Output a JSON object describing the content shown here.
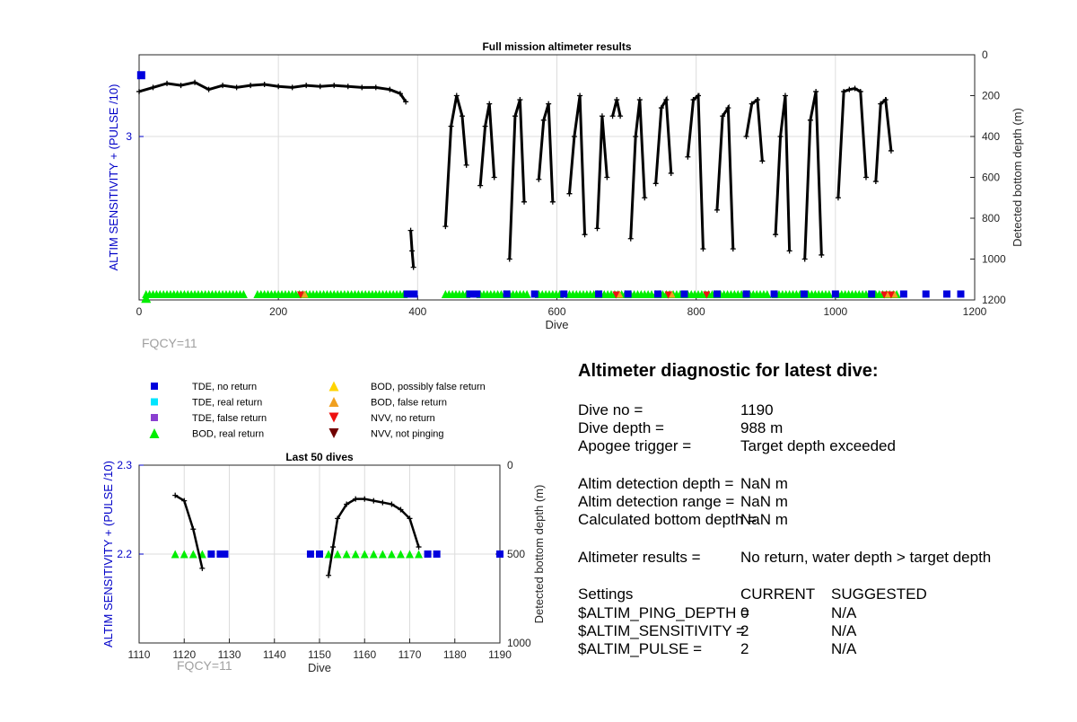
{
  "charts": {
    "colors": {
      "axis": "#262626",
      "grid": "#dcdcdc",
      "left_axis": "#0000c8",
      "black": "#000000",
      "blue": "#0000dd",
      "green": "#00ee00",
      "cyan": "#00e5ff",
      "purple": "#8a3fd0",
      "yellow": "#ffd400",
      "orange": "#f0a020",
      "red": "#ee1111",
      "darkred": "#700000",
      "fqcy": "#a0a0a0"
    }
  },
  "chart_data": [
    {
      "type": "scatter",
      "title": "Full mission altimeter results",
      "xlabel": "Dive",
      "ylabel_left": "ALTIM SENSITIVITY + (PULSE /10)",
      "ylabel_right": "Detected bottom depth (m)",
      "xlim": [
        0,
        1200
      ],
      "xticks": [
        0,
        200,
        400,
        600,
        800,
        1000,
        1200
      ],
      "ylim_right": [
        0,
        1200
      ],
      "yticks_right": [
        0,
        200,
        400,
        600,
        800,
        1000,
        1200
      ],
      "ytick_left": [
        3
      ],
      "ytick_left_value": 3.0,
      "ylim_left": [
        2.2,
        3.4
      ],
      "grid": true,
      "annotation": "FQCY=11",
      "left_marker": {
        "x": 3,
        "y": 3.3
      },
      "left_triangle": {
        "x": 10,
        "y": 2.21
      },
      "bottom_depth_segments": [
        {
          "x": [
            0,
            20,
            40,
            60,
            80,
            100,
            120,
            140,
            160,
            180,
            200,
            220,
            240,
            260,
            280,
            300,
            320,
            340,
            360,
            375,
            383
          ],
          "y": [
            180,
            160,
            140,
            150,
            135,
            170,
            150,
            160,
            150,
            145,
            155,
            160,
            150,
            155,
            150,
            155,
            160,
            160,
            170,
            190,
            230
          ]
        },
        {
          "x": [
            390,
            392,
            394
          ],
          "y": [
            860,
            960,
            1040
          ]
        },
        {
          "x": [
            440,
            448,
            456,
            464,
            470
          ],
          "y": [
            840,
            350,
            200,
            300,
            540
          ]
        },
        {
          "x": [
            490,
            497,
            503,
            510
          ],
          "y": [
            640,
            350,
            240,
            600
          ]
        },
        {
          "x": [
            532,
            540,
            547,
            553
          ],
          "y": [
            1000,
            300,
            220,
            720
          ]
        },
        {
          "x": [
            574,
            581,
            588,
            594
          ],
          "y": [
            610,
            320,
            240,
            720
          ]
        },
        {
          "x": [
            618,
            625,
            633,
            640
          ],
          "y": [
            680,
            400,
            200,
            880
          ]
        },
        {
          "x": [
            658,
            665,
            672
          ],
          "y": [
            850,
            300,
            600
          ]
        },
        {
          "x": [
            680,
            686,
            691
          ],
          "y": [
            300,
            220,
            300
          ]
        },
        {
          "x": [
            706,
            713,
            719,
            726
          ],
          "y": [
            900,
            400,
            220,
            700
          ]
        },
        {
          "x": [
            742,
            750,
            757,
            764
          ],
          "y": [
            630,
            260,
            220,
            580
          ]
        },
        {
          "x": [
            788,
            796,
            803,
            810
          ],
          "y": [
            500,
            220,
            200,
            950
          ]
        },
        {
          "x": [
            830,
            838,
            846,
            853
          ],
          "y": [
            760,
            300,
            260,
            950
          ]
        },
        {
          "x": [
            872,
            880,
            888,
            895
          ],
          "y": [
            400,
            240,
            220,
            520
          ]
        },
        {
          "x": [
            914,
            921,
            928,
            934
          ],
          "y": [
            880,
            400,
            200,
            960
          ]
        },
        {
          "x": [
            956,
            964,
            972,
            980
          ],
          "y": [
            1000,
            320,
            180,
            980
          ]
        },
        {
          "x": [
            1004,
            1012,
            1020,
            1028,
            1036,
            1044
          ],
          "y": [
            700,
            180,
            170,
            165,
            180,
            600
          ]
        },
        {
          "x": [
            1058,
            1065,
            1072,
            1080
          ],
          "y": [
            620,
            240,
            220,
            470
          ]
        }
      ],
      "flag_band_depth": 1180,
      "flag_band_green_x": [
        [
          10,
          150
        ],
        [
          170,
          380
        ],
        [
          440,
          470
        ],
        [
          490,
          525
        ],
        [
          532,
          560
        ],
        [
          574,
          605
        ],
        [
          618,
          655
        ],
        [
          658,
          700
        ],
        [
          706,
          740
        ],
        [
          742,
          780
        ],
        [
          788,
          825
        ],
        [
          830,
          870
        ],
        [
          872,
          905
        ],
        [
          914,
          950
        ],
        [
          956,
          995
        ],
        [
          1004,
          1050
        ],
        [
          1058,
          1090
        ]
      ],
      "flag_band_blue_x": [
        385,
        395,
        475,
        485,
        528,
        568,
        610,
        660,
        702,
        745,
        783,
        830,
        872,
        912,
        955,
        1000,
        1052,
        1098,
        1130,
        1160,
        1180
      ],
      "flag_band_red_x": [
        232,
        685,
        760,
        815,
        1070,
        1080
      ],
      "flag_band_orange_x": [
        238,
        690,
        765,
        1075,
        1085
      ]
    },
    {
      "type": "scatter",
      "title": "Last 50 dives",
      "xlabel": "Dive",
      "ylabel_left": "ALTIM SENSITIVITY + (PULSE /10)",
      "ylabel_right": "Detected bottom depth (m)",
      "xlim": [
        1110,
        1190
      ],
      "xticks": [
        1110,
        1120,
        1130,
        1140,
        1150,
        1160,
        1170,
        1180,
        1190
      ],
      "ylim_left": [
        2.1,
        2.3
      ],
      "yticks_left": [
        "2.3",
        "2.2"
      ],
      "ytick_left_values": [
        2.3,
        2.2
      ],
      "ylim_right": [
        0,
        1000
      ],
      "yticks_right": [
        0,
        500,
        1000
      ],
      "grid": true,
      "annotation": "FQCY=11",
      "bottom_depth_segments": [
        {
          "x": [
            1118,
            1120,
            1122,
            1124
          ],
          "y": [
            170,
            200,
            360,
            580
          ]
        },
        {
          "x": [
            1152,
            1153,
            1154,
            1156,
            1158,
            1160,
            1162,
            1164,
            1166,
            1168,
            1170,
            1172
          ],
          "y": [
            620,
            460,
            300,
            220,
            190,
            190,
            200,
            210,
            220,
            250,
            300,
            460
          ]
        }
      ],
      "green_triangles_x": [
        1118,
        1120,
        1122,
        1124,
        1152,
        1154,
        1156,
        1158,
        1160,
        1162,
        1164,
        1166,
        1168,
        1170,
        1172
      ],
      "blue_squares_x": [
        1126,
        1128,
        1129,
        1148,
        1150,
        1174,
        1176,
        1190
      ],
      "flag_value": 2.2
    }
  ],
  "legend": [
    {
      "label": "TDE, no return",
      "shape": "square",
      "color": "blue"
    },
    {
      "label": "TDE, real return",
      "shape": "square",
      "color": "cyan"
    },
    {
      "label": "TDE, false return",
      "shape": "square",
      "color": "purple"
    },
    {
      "label": "BOD, real return",
      "shape": "triangle-up",
      "color": "green"
    },
    {
      "label": "BOD, possibly false return",
      "shape": "triangle-up",
      "color": "yellow"
    },
    {
      "label": "BOD, false return",
      "shape": "triangle-up",
      "color": "orange"
    },
    {
      "label": "NVV, no return",
      "shape": "triangle-down",
      "color": "red"
    },
    {
      "label": "NVV, not pinging",
      "shape": "triangle-down",
      "color": "darkred"
    }
  ],
  "diagnostic": {
    "title": "Altimeter diagnostic for latest dive:",
    "dive_no_label": "Dive no =",
    "dive_no_value": "1190",
    "dive_depth_label": "Dive depth =",
    "dive_depth_value": "988 m",
    "apogee_label": "Apogee trigger =",
    "apogee_value": "Target depth exceeded",
    "det_depth_label": "Altim detection depth =",
    "det_depth_value": "NaN m",
    "det_range_label": "Altim detection range =",
    "det_range_value": "NaN m",
    "calc_depth_label": "Calculated bottom depth =",
    "calc_depth_value": "NaN m",
    "results_label": "Altimeter results =",
    "results_value": "No return, water depth > target depth",
    "settings_label": "Settings",
    "current_header": "CURRENT",
    "suggested_header": "SUGGESTED",
    "settings": [
      {
        "name": "$ALTIM_PING_DEPTH =",
        "current": "0",
        "suggested": "N/A"
      },
      {
        "name": "$ALTIM_SENSITIVITY =",
        "current": "2",
        "suggested": "N/A"
      },
      {
        "name": "$ALTIM_PULSE =",
        "current": "2",
        "suggested": "N/A"
      }
    ]
  }
}
